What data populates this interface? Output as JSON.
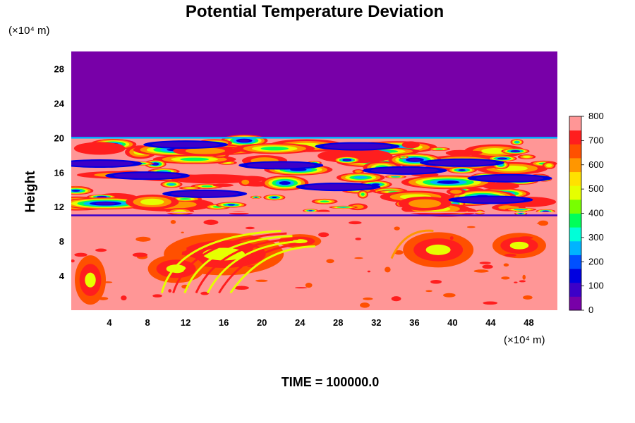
{
  "chart_data": {
    "type": "heatmap",
    "title": "Potential Temperature Deviation",
    "xlabel": "",
    "ylabel": "Height",
    "x_unit_label": "(×10⁴ m)",
    "y_unit_label": "(×10⁴ m)",
    "xlim": [
      0,
      51
    ],
    "ylim": [
      0,
      30
    ],
    "x_ticks": [
      4,
      8,
      12,
      16,
      20,
      24,
      28,
      32,
      36,
      40,
      44,
      48
    ],
    "y_ticks": [
      4,
      8,
      12,
      16,
      20,
      24,
      28
    ],
    "colorbar": {
      "min": 0,
      "max": 800,
      "ticks": [
        0,
        100,
        200,
        300,
        400,
        500,
        600,
        700,
        800
      ],
      "colors": [
        "#7800a8",
        "#3c00c8",
        "#0000e0",
        "#0050ff",
        "#00b4ff",
        "#00ffd8",
        "#00ff5a",
        "#78ff00",
        "#e6ff00",
        "#ffe100",
        "#ff9600",
        "#ff5000",
        "#ff1e1e",
        "#ff9696"
      ]
    },
    "field": {
      "description_layers": [
        {
          "y_range": [
            20,
            30
          ],
          "value": 0
        },
        {
          "y_range": [
            11,
            20
          ],
          "value": "mixed 0-800"
        },
        {
          "y_range": [
            0,
            11
          ],
          "value": "mostly 800 with 600-700 features"
        }
      ]
    },
    "footer": "TIME = 100000.0"
  }
}
